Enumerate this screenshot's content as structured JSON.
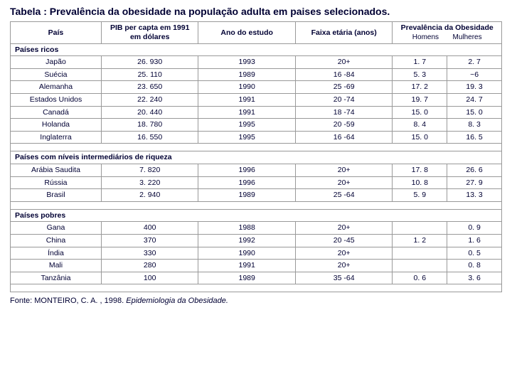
{
  "title": "Tabela : Prevalência da obesidade na população adulta em paises selecionados.",
  "headers": {
    "country": "País",
    "pib": "PIB per capta em 1991 em dólares",
    "year": "Ano do estudo",
    "age": "Faixa etária (anos)",
    "prev": "Prevalência da Obesidade",
    "men": "Homens",
    "women": "Mulheres"
  },
  "sections": [
    {
      "label": "Países ricos",
      "rows": [
        {
          "country": "Japão",
          "pib": "26. 930",
          "year": "1993",
          "age": "20+",
          "men": "1. 7",
          "women": "2. 7"
        },
        {
          "country": "Suécia",
          "pib": "25. 110",
          "year": "1989",
          "age": "16 -84",
          "men": "5. 3",
          "women": "~6"
        },
        {
          "country": "Alemanha",
          "pib": "23. 650",
          "year": "1990",
          "age": "25 -69",
          "men": "17. 2",
          "women": "19. 3"
        },
        {
          "country": "Estados Unidos",
          "pib": "22. 240",
          "year": "1991",
          "age": "20 -74",
          "men": "19. 7",
          "women": "24. 7"
        },
        {
          "country": "Canadá",
          "pib": "20. 440",
          "year": "1991",
          "age": "18 -74",
          "men": "15. 0",
          "women": "15. 0"
        },
        {
          "country": "Holanda",
          "pib": "18. 780",
          "year": "1995",
          "age": "20 -59",
          "men": "8. 4",
          "women": "8. 3"
        },
        {
          "country": "Inglaterra",
          "pib": "16. 550",
          "year": "1995",
          "age": "16 -64",
          "men": "15. 0",
          "women": "16. 5"
        }
      ]
    },
    {
      "label": "Países com níveis intermediários de riqueza",
      "rows": [
        {
          "country": "Arábia Saudita",
          "pib": "7. 820",
          "year": "1996",
          "age": "20+",
          "men": "17. 8",
          "women": "26. 6"
        },
        {
          "country": "Rússia",
          "pib": "3. 220",
          "year": "1996",
          "age": "20+",
          "men": "10. 8",
          "women": "27. 9"
        },
        {
          "country": "Brasil",
          "pib": "2. 940",
          "year": "1989",
          "age": "25 -64",
          "men": "5. 9",
          "women": "13. 3"
        }
      ]
    },
    {
      "label": "Países pobres",
      "rows": [
        {
          "country": "Gana",
          "pib": "400",
          "year": "1988",
          "age": "20+",
          "men": "",
          "women": "0. 9"
        },
        {
          "country": "China",
          "pib": "370",
          "year": "1992",
          "age": "20 -45",
          "men": "1. 2",
          "women": "1. 6"
        },
        {
          "country": "Índia",
          "pib": "330",
          "year": "1990",
          "age": "20+",
          "men": "",
          "women": "0. 5"
        },
        {
          "country": "Mali",
          "pib": "280",
          "year": "1991",
          "age": "20+",
          "men": "",
          "women": "0. 8"
        },
        {
          "country": "Tanzânia",
          "pib": "100",
          "year": "1989",
          "age": "35 -64",
          "men": "0. 6",
          "women": "3. 6"
        }
      ]
    }
  ],
  "source_prefix": "Fonte: MONTEIRO, C. A. ,   1998. ",
  "source_italic": "Epidemiologia da Obesidade.",
  "colors": {
    "text": "#000033",
    "border": "#999999",
    "background": "#ffffff"
  }
}
